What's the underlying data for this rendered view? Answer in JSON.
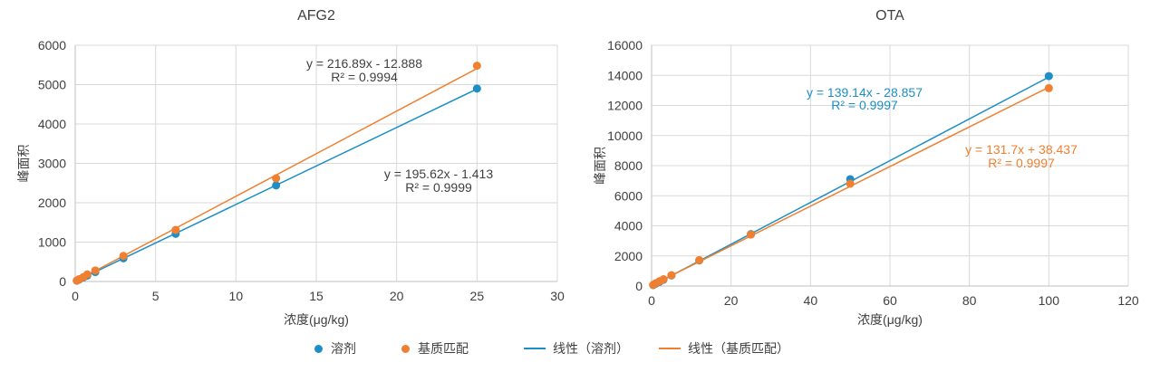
{
  "colors": {
    "solvent": "#1b8fc6",
    "matrix": "#f07f2f",
    "grid": "#d9d9d9",
    "axis": "#bfbfbf",
    "text": "#404040"
  },
  "legend": {
    "solvent_points": "溶剂",
    "matrix_points": "基质匹配",
    "solvent_line": "线性（溶剂）",
    "matrix_line": "线性（基质匹配）"
  },
  "chart_data": [
    {
      "type": "scatter",
      "title": "AFG2",
      "xlabel": "浓度(μg/kg)",
      "ylabel": "峰面积",
      "xlim": [
        0,
        30
      ],
      "ylim": [
        0,
        6000
      ],
      "xticks": [
        0,
        5,
        10,
        15,
        20,
        25,
        30
      ],
      "yticks": [
        0,
        1000,
        2000,
        3000,
        4000,
        5000,
        6000
      ],
      "grid": true,
      "series": [
        {
          "name": "溶剂",
          "x": [
            0.1,
            0.25,
            0.5,
            0.75,
            1.25,
            3.0,
            6.25,
            12.5,
            25.0
          ],
          "y": [
            20,
            50,
            100,
            150,
            240,
            590,
            1210,
            2440,
            4900
          ],
          "fit": {
            "slope": 195.62,
            "intercept": -1.413
          },
          "equation": "y = 195.62x - 1.413",
          "r2": "R² = 0.9999"
        },
        {
          "name": "基质匹配",
          "x": [
            0.1,
            0.25,
            0.5,
            0.75,
            1.25,
            3.0,
            6.25,
            12.5,
            25.0
          ],
          "y": [
            25,
            60,
            110,
            180,
            280,
            650,
            1310,
            2620,
            5480
          ],
          "fit": {
            "slope": 216.89,
            "intercept": -12.888
          },
          "equation": "y = 216.89x - 12.888",
          "r2": "R² = 0.9994"
        }
      ]
    },
    {
      "type": "scatter",
      "title": "OTA",
      "xlabel": "浓度(μg/kg)",
      "ylabel": "峰面积",
      "xlim": [
        0,
        120
      ],
      "ylim": [
        0,
        16000
      ],
      "xticks": [
        0,
        20,
        40,
        60,
        80,
        100,
        120
      ],
      "yticks": [
        0,
        2000,
        4000,
        6000,
        8000,
        10000,
        12000,
        14000,
        16000
      ],
      "grid": true,
      "series": [
        {
          "name": "溶剂",
          "x": [
            0.4,
            1.0,
            2.0,
            3.0,
            5.0,
            12.0,
            25.0,
            50.0,
            100.0
          ],
          "y": [
            60,
            150,
            280,
            420,
            700,
            1700,
            3450,
            7100,
            13950
          ],
          "fit": {
            "slope": 139.14,
            "intercept": -28.857
          },
          "equation": "y = 139.14x - 28.857",
          "r2": "R² = 0.9997"
        },
        {
          "name": "基质匹配",
          "x": [
            0.4,
            1.0,
            2.0,
            3.0,
            5.0,
            12.0,
            25.0,
            50.0,
            100.0
          ],
          "y": [
            80,
            180,
            320,
            450,
            720,
            1720,
            3420,
            6800,
            13150
          ],
          "fit": {
            "slope": 131.7,
            "intercept": 38.437
          },
          "equation": "y = 131.7x + 38.437",
          "r2": "R² = 0.9997"
        }
      ]
    }
  ]
}
